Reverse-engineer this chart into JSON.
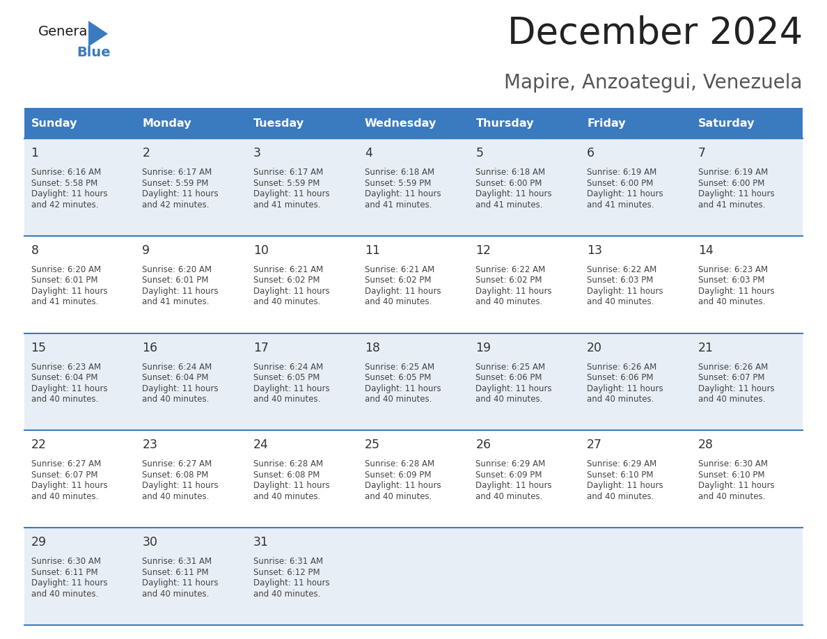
{
  "title": "December 2024",
  "subtitle": "Mapire, Anzoategui, Venezuela",
  "header_color": "#3a7bbf",
  "header_text_color": "#ffffff",
  "day_names": [
    "Sunday",
    "Monday",
    "Tuesday",
    "Wednesday",
    "Thursday",
    "Friday",
    "Saturday"
  ],
  "bg_color": "#ffffff",
  "cell_bg_even": "#e8eef5",
  "cell_bg_odd": "#ffffff",
  "border_color": "#3a7bbf",
  "day_num_color": "#333333",
  "text_color": "#444444",
  "title_color": "#222222",
  "subtitle_color": "#555555",
  "days": [
    {
      "day": 1,
      "col": 0,
      "row": 0,
      "sunrise": "6:16 AM",
      "sunset": "5:58 PM",
      "daylight": "11 hours and 42 minutes."
    },
    {
      "day": 2,
      "col": 1,
      "row": 0,
      "sunrise": "6:17 AM",
      "sunset": "5:59 PM",
      "daylight": "11 hours and 42 minutes."
    },
    {
      "day": 3,
      "col": 2,
      "row": 0,
      "sunrise": "6:17 AM",
      "sunset": "5:59 PM",
      "daylight": "11 hours and 41 minutes."
    },
    {
      "day": 4,
      "col": 3,
      "row": 0,
      "sunrise": "6:18 AM",
      "sunset": "5:59 PM",
      "daylight": "11 hours and 41 minutes."
    },
    {
      "day": 5,
      "col": 4,
      "row": 0,
      "sunrise": "6:18 AM",
      "sunset": "6:00 PM",
      "daylight": "11 hours and 41 minutes."
    },
    {
      "day": 6,
      "col": 5,
      "row": 0,
      "sunrise": "6:19 AM",
      "sunset": "6:00 PM",
      "daylight": "11 hours and 41 minutes."
    },
    {
      "day": 7,
      "col": 6,
      "row": 0,
      "sunrise": "6:19 AM",
      "sunset": "6:00 PM",
      "daylight": "11 hours and 41 minutes."
    },
    {
      "day": 8,
      "col": 0,
      "row": 1,
      "sunrise": "6:20 AM",
      "sunset": "6:01 PM",
      "daylight": "11 hours and 41 minutes."
    },
    {
      "day": 9,
      "col": 1,
      "row": 1,
      "sunrise": "6:20 AM",
      "sunset": "6:01 PM",
      "daylight": "11 hours and 41 minutes."
    },
    {
      "day": 10,
      "col": 2,
      "row": 1,
      "sunrise": "6:21 AM",
      "sunset": "6:02 PM",
      "daylight": "11 hours and 40 minutes."
    },
    {
      "day": 11,
      "col": 3,
      "row": 1,
      "sunrise": "6:21 AM",
      "sunset": "6:02 PM",
      "daylight": "11 hours and 40 minutes."
    },
    {
      "day": 12,
      "col": 4,
      "row": 1,
      "sunrise": "6:22 AM",
      "sunset": "6:02 PM",
      "daylight": "11 hours and 40 minutes."
    },
    {
      "day": 13,
      "col": 5,
      "row": 1,
      "sunrise": "6:22 AM",
      "sunset": "6:03 PM",
      "daylight": "11 hours and 40 minutes."
    },
    {
      "day": 14,
      "col": 6,
      "row": 1,
      "sunrise": "6:23 AM",
      "sunset": "6:03 PM",
      "daylight": "11 hours and 40 minutes."
    },
    {
      "day": 15,
      "col": 0,
      "row": 2,
      "sunrise": "6:23 AM",
      "sunset": "6:04 PM",
      "daylight": "11 hours and 40 minutes."
    },
    {
      "day": 16,
      "col": 1,
      "row": 2,
      "sunrise": "6:24 AM",
      "sunset": "6:04 PM",
      "daylight": "11 hours and 40 minutes."
    },
    {
      "day": 17,
      "col": 2,
      "row": 2,
      "sunrise": "6:24 AM",
      "sunset": "6:05 PM",
      "daylight": "11 hours and 40 minutes."
    },
    {
      "day": 18,
      "col": 3,
      "row": 2,
      "sunrise": "6:25 AM",
      "sunset": "6:05 PM",
      "daylight": "11 hours and 40 minutes."
    },
    {
      "day": 19,
      "col": 4,
      "row": 2,
      "sunrise": "6:25 AM",
      "sunset": "6:06 PM",
      "daylight": "11 hours and 40 minutes."
    },
    {
      "day": 20,
      "col": 5,
      "row": 2,
      "sunrise": "6:26 AM",
      "sunset": "6:06 PM",
      "daylight": "11 hours and 40 minutes."
    },
    {
      "day": 21,
      "col": 6,
      "row": 2,
      "sunrise": "6:26 AM",
      "sunset": "6:07 PM",
      "daylight": "11 hours and 40 minutes."
    },
    {
      "day": 22,
      "col": 0,
      "row": 3,
      "sunrise": "6:27 AM",
      "sunset": "6:07 PM",
      "daylight": "11 hours and 40 minutes."
    },
    {
      "day": 23,
      "col": 1,
      "row": 3,
      "sunrise": "6:27 AM",
      "sunset": "6:08 PM",
      "daylight": "11 hours and 40 minutes."
    },
    {
      "day": 24,
      "col": 2,
      "row": 3,
      "sunrise": "6:28 AM",
      "sunset": "6:08 PM",
      "daylight": "11 hours and 40 minutes."
    },
    {
      "day": 25,
      "col": 3,
      "row": 3,
      "sunrise": "6:28 AM",
      "sunset": "6:09 PM",
      "daylight": "11 hours and 40 minutes."
    },
    {
      "day": 26,
      "col": 4,
      "row": 3,
      "sunrise": "6:29 AM",
      "sunset": "6:09 PM",
      "daylight": "11 hours and 40 minutes."
    },
    {
      "day": 27,
      "col": 5,
      "row": 3,
      "sunrise": "6:29 AM",
      "sunset": "6:10 PM",
      "daylight": "11 hours and 40 minutes."
    },
    {
      "day": 28,
      "col": 6,
      "row": 3,
      "sunrise": "6:30 AM",
      "sunset": "6:10 PM",
      "daylight": "11 hours and 40 minutes."
    },
    {
      "day": 29,
      "col": 0,
      "row": 4,
      "sunrise": "6:30 AM",
      "sunset": "6:11 PM",
      "daylight": "11 hours and 40 minutes."
    },
    {
      "day": 30,
      "col": 1,
      "row": 4,
      "sunrise": "6:31 AM",
      "sunset": "6:11 PM",
      "daylight": "11 hours and 40 minutes."
    },
    {
      "day": 31,
      "col": 2,
      "row": 4,
      "sunrise": "6:31 AM",
      "sunset": "6:12 PM",
      "daylight": "11 hours and 40 minutes."
    }
  ]
}
